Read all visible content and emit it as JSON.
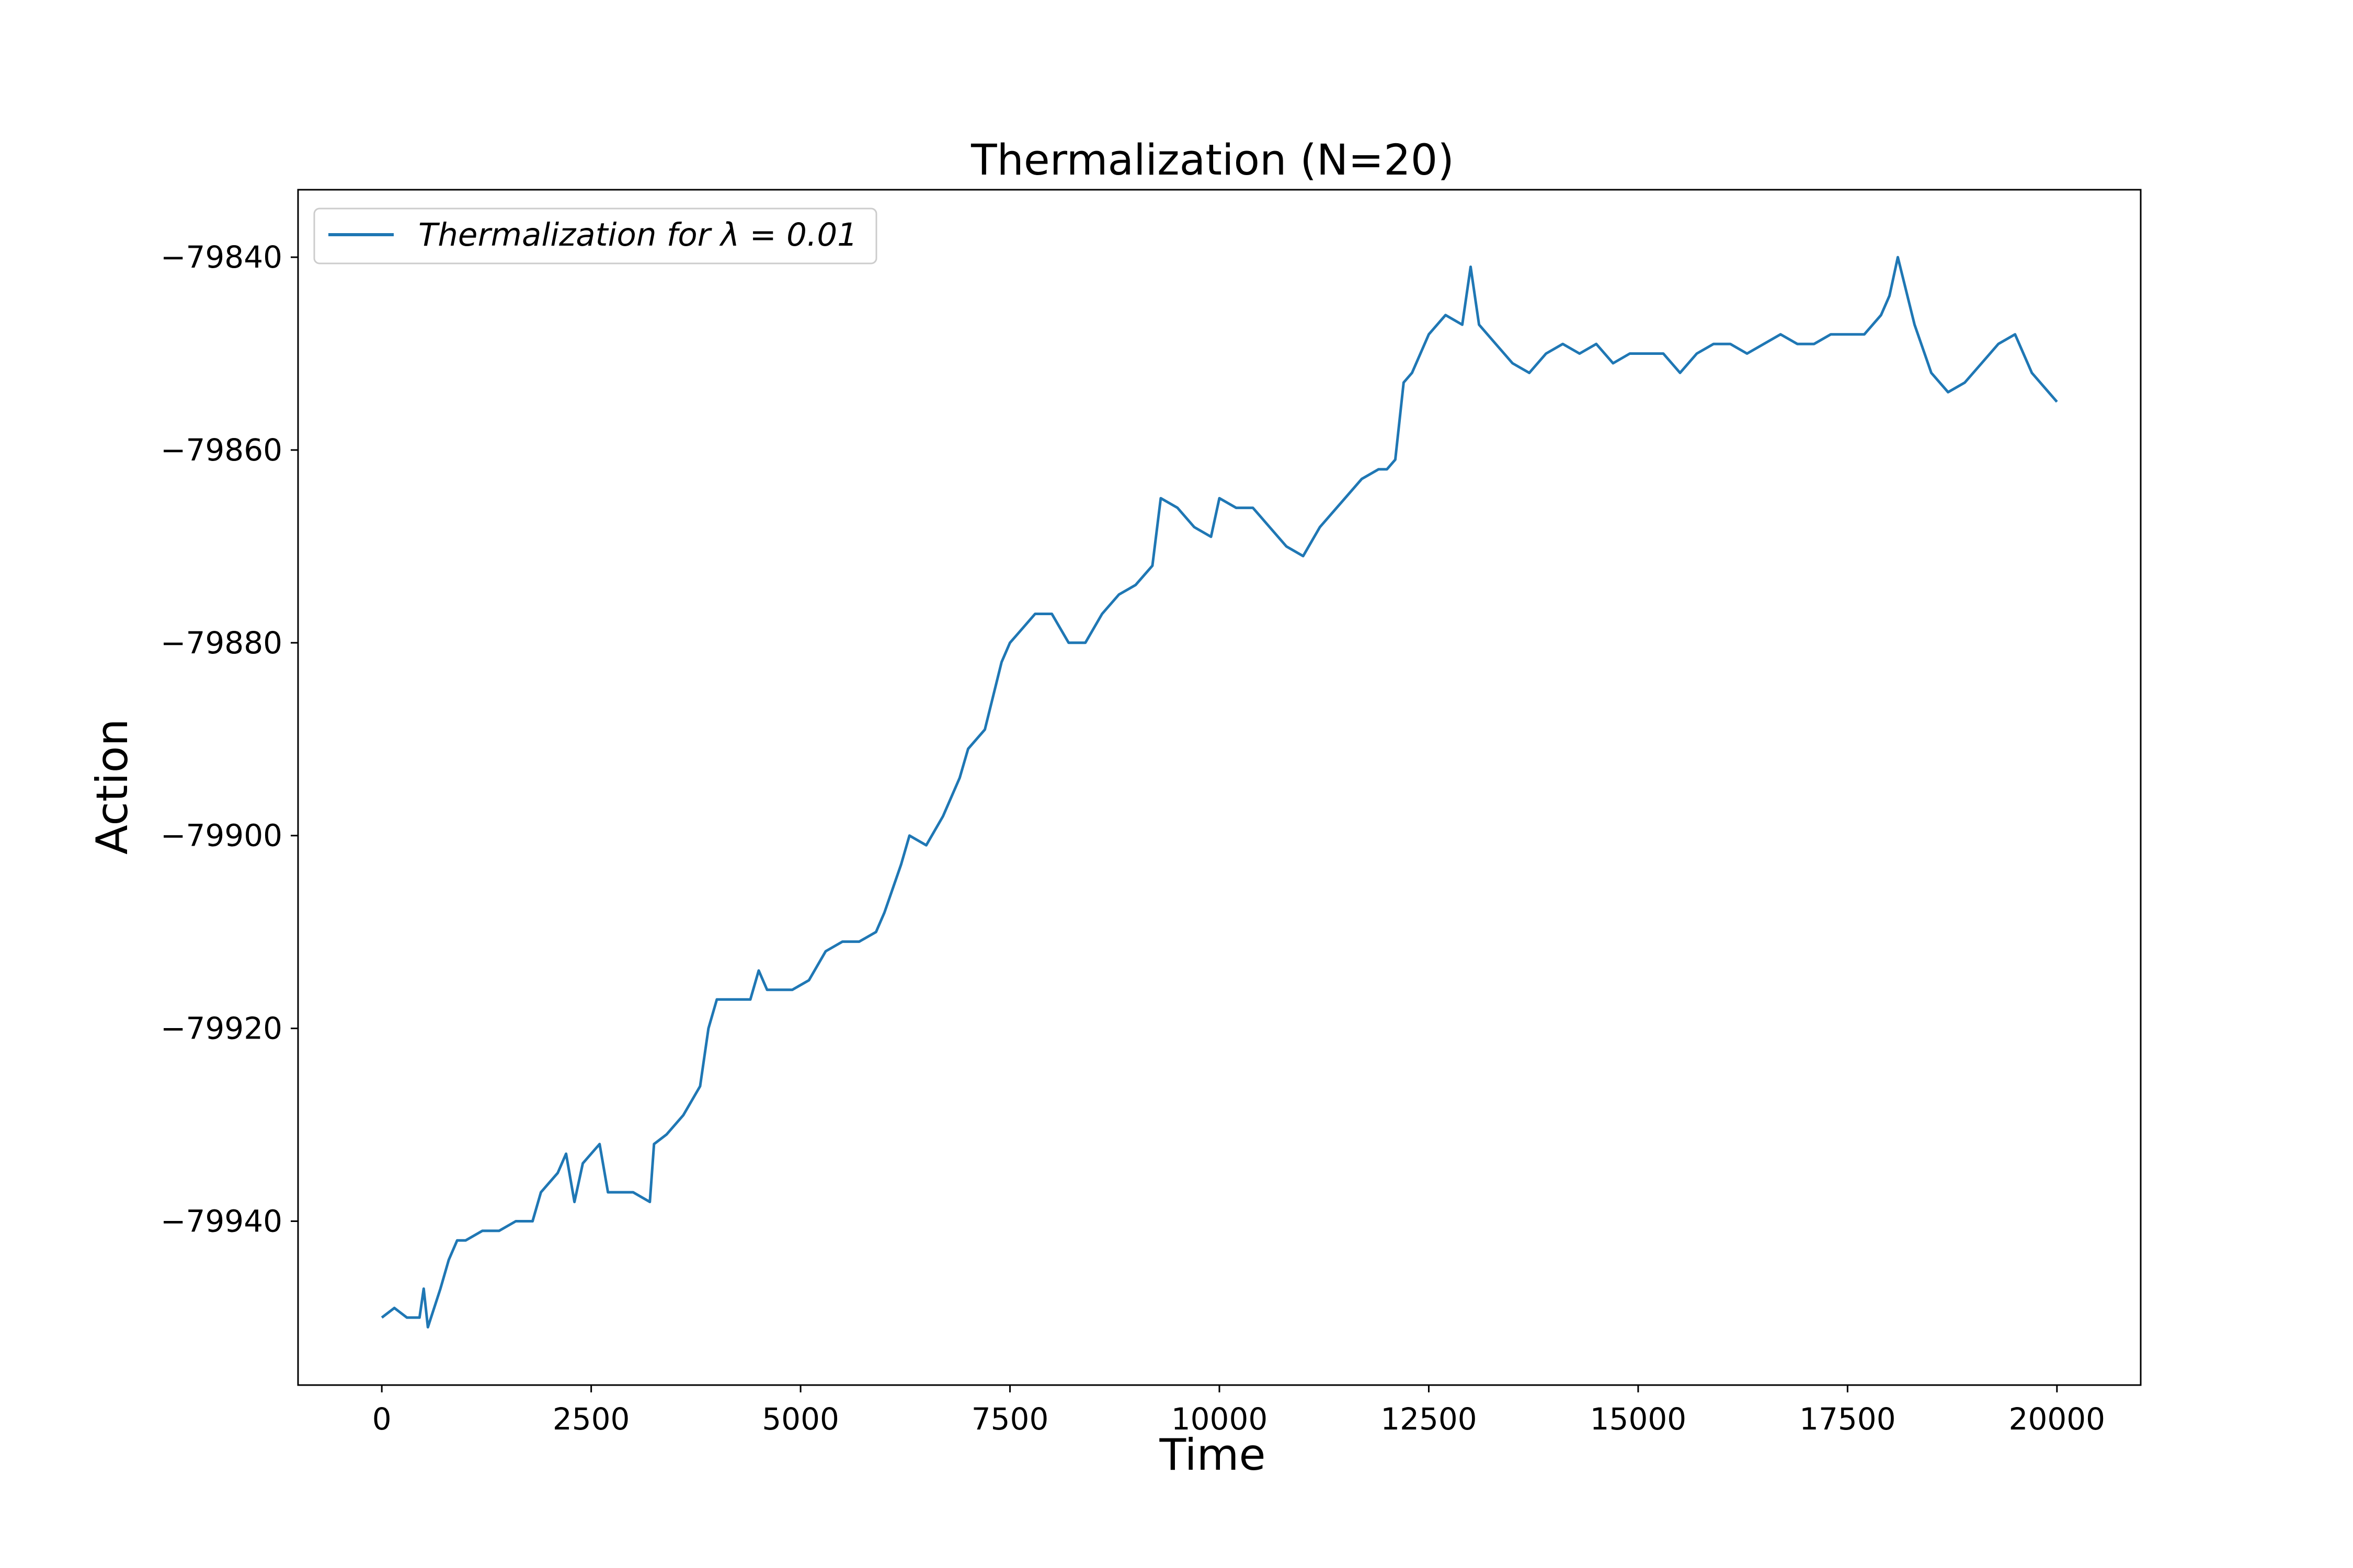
{
  "chart_data": {
    "type": "line",
    "title": "Thermalization (N=20)",
    "xlabel": "Time",
    "ylabel": "Action",
    "xlim": [
      -1000,
      21000
    ],
    "ylim": [
      -79957,
      -79833
    ],
    "xticks": [
      0,
      2500,
      5000,
      7500,
      10000,
      12500,
      15000,
      17500,
      20000
    ],
    "xtick_labels": [
      "0",
      "2500",
      "5000",
      "7500",
      "10000",
      "12500",
      "15000",
      "17500",
      "20000"
    ],
    "yticks": [
      -79940,
      -79920,
      -79900,
      -79880,
      -79860,
      -79840
    ],
    "ytick_labels": [
      "−79940",
      "−79920",
      "−79900",
      "−79880",
      "−79860",
      "−79840"
    ],
    "grid": false,
    "legend": {
      "position": "top-left",
      "label": "Thermalization for λ = 0.01"
    },
    "series": [
      {
        "name": "Thermalization for λ = 0.01",
        "color": "#1f77b4",
        "x": [
          0,
          150,
          300,
          450,
          500,
          550,
          700,
          800,
          900,
          1000,
          1200,
          1400,
          1600,
          1800,
          1900,
          2000,
          2100,
          2200,
          2300,
          2400,
          2500,
          2600,
          2700,
          2750,
          3000,
          3200,
          3250,
          3400,
          3600,
          3800,
          3900,
          4000,
          4200,
          4400,
          4500,
          4600,
          4700,
          4900,
          5100,
          5300,
          5500,
          5700,
          5900,
          6000,
          6200,
          6300,
          6500,
          6700,
          6900,
          7000,
          7200,
          7400,
          7500,
          7600,
          7800,
          8000,
          8200,
          8400,
          8600,
          8800,
          9000,
          9200,
          9300,
          9500,
          9700,
          9900,
          10000,
          10200,
          10400,
          10600,
          10800,
          11000,
          11200,
          11500,
          11700,
          11900,
          12000,
          12100,
          12200,
          12300,
          12500,
          12700,
          12900,
          13000,
          13100,
          13300,
          13500,
          13700,
          13900,
          14100,
          14300,
          14500,
          14700,
          14900,
          15100,
          15300,
          15500,
          15700,
          15900,
          16100,
          16300,
          16500,
          16700,
          16900,
          17100,
          17300,
          17500,
          17700,
          17900,
          18000,
          18100,
          18300,
          18500,
          18700,
          18900,
          19100,
          19300,
          19500,
          19700,
          19900,
          20000
        ],
        "y": [
          -79950,
          -79949,
          -79950,
          -79950,
          -79947,
          -79951,
          -79947,
          -79944,
          -79942,
          -79942,
          -79941,
          -79941,
          -79940,
          -79940,
          -79937,
          -79936,
          -79935,
          -79933,
          -79938,
          -79934,
          -79933,
          -79932,
          -79937,
          -79937,
          -79937,
          -79938,
          -79932,
          -79931,
          -79929,
          -79926,
          -79920,
          -79917,
          -79917,
          -79917,
          -79914,
          -79916,
          -79916,
          -79916,
          -79915,
          -79912,
          -79911,
          -79911,
          -79910,
          -79908,
          -79903,
          -79900,
          -79901,
          -79898,
          -79894,
          -79891,
          -79889,
          -79882,
          -79880,
          -79879,
          -79877,
          -79877,
          -79880,
          -79880,
          -79877,
          -79875,
          -79874,
          -79872,
          -79865,
          -79866,
          -79868,
          -79869,
          -79865,
          -79866,
          -79866,
          -79868,
          -79870,
          -79871,
          -79868,
          -79865,
          -79863,
          -79862,
          -79862,
          -79861,
          -79853,
          -79852,
          -79848,
          -79846,
          -79847,
          -79841,
          -79847,
          -79849,
          -79851,
          -79852,
          -79850,
          -79849,
          -79850,
          -79849,
          -79851,
          -79850,
          -79850,
          -79850,
          -79852,
          -79850,
          -79849,
          -79849,
          -79850,
          -79849,
          -79848,
          -79849,
          -79849,
          -79848,
          -79848,
          -79848,
          -79846,
          -79844,
          -79840,
          -79847,
          -79852,
          -79854,
          -79853,
          -79851,
          -79849,
          -79848,
          -79852,
          -79854,
          -79855
        ]
      }
    ]
  }
}
